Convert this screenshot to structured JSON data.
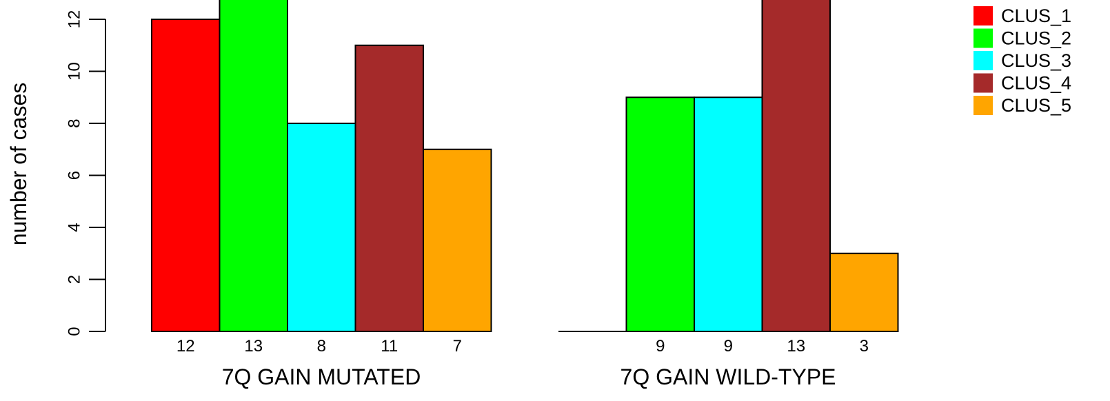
{
  "chart_data": {
    "type": "bar",
    "ylabel": "number of cases",
    "y_ticks": [
      0,
      2,
      4,
      6,
      8,
      10,
      12
    ],
    "ylim": [
      0,
      13
    ],
    "groups": [
      {
        "label": "7Q GAIN MUTATED",
        "values": [
          12,
          13,
          8,
          11,
          7
        ]
      },
      {
        "label": "7Q GAIN WILD-TYPE",
        "values": [
          0,
          9,
          9,
          13,
          3
        ]
      }
    ],
    "count_labels": [
      [
        "12",
        "13",
        "8",
        "11",
        "7"
      ],
      [
        "",
        "9",
        "9",
        "13",
        "3"
      ]
    ],
    "series": [
      {
        "name": "CLUS_1",
        "color": "#ff0000"
      },
      {
        "name": "CLUS_2",
        "color": "#00ff00"
      },
      {
        "name": "CLUS_3",
        "color": "#00ffff"
      },
      {
        "name": "CLUS_4",
        "color": "#a52a2a"
      },
      {
        "name": "CLUS_5",
        "color": "#ffa500"
      }
    ],
    "legend_position": "top-right",
    "grid": false
  }
}
